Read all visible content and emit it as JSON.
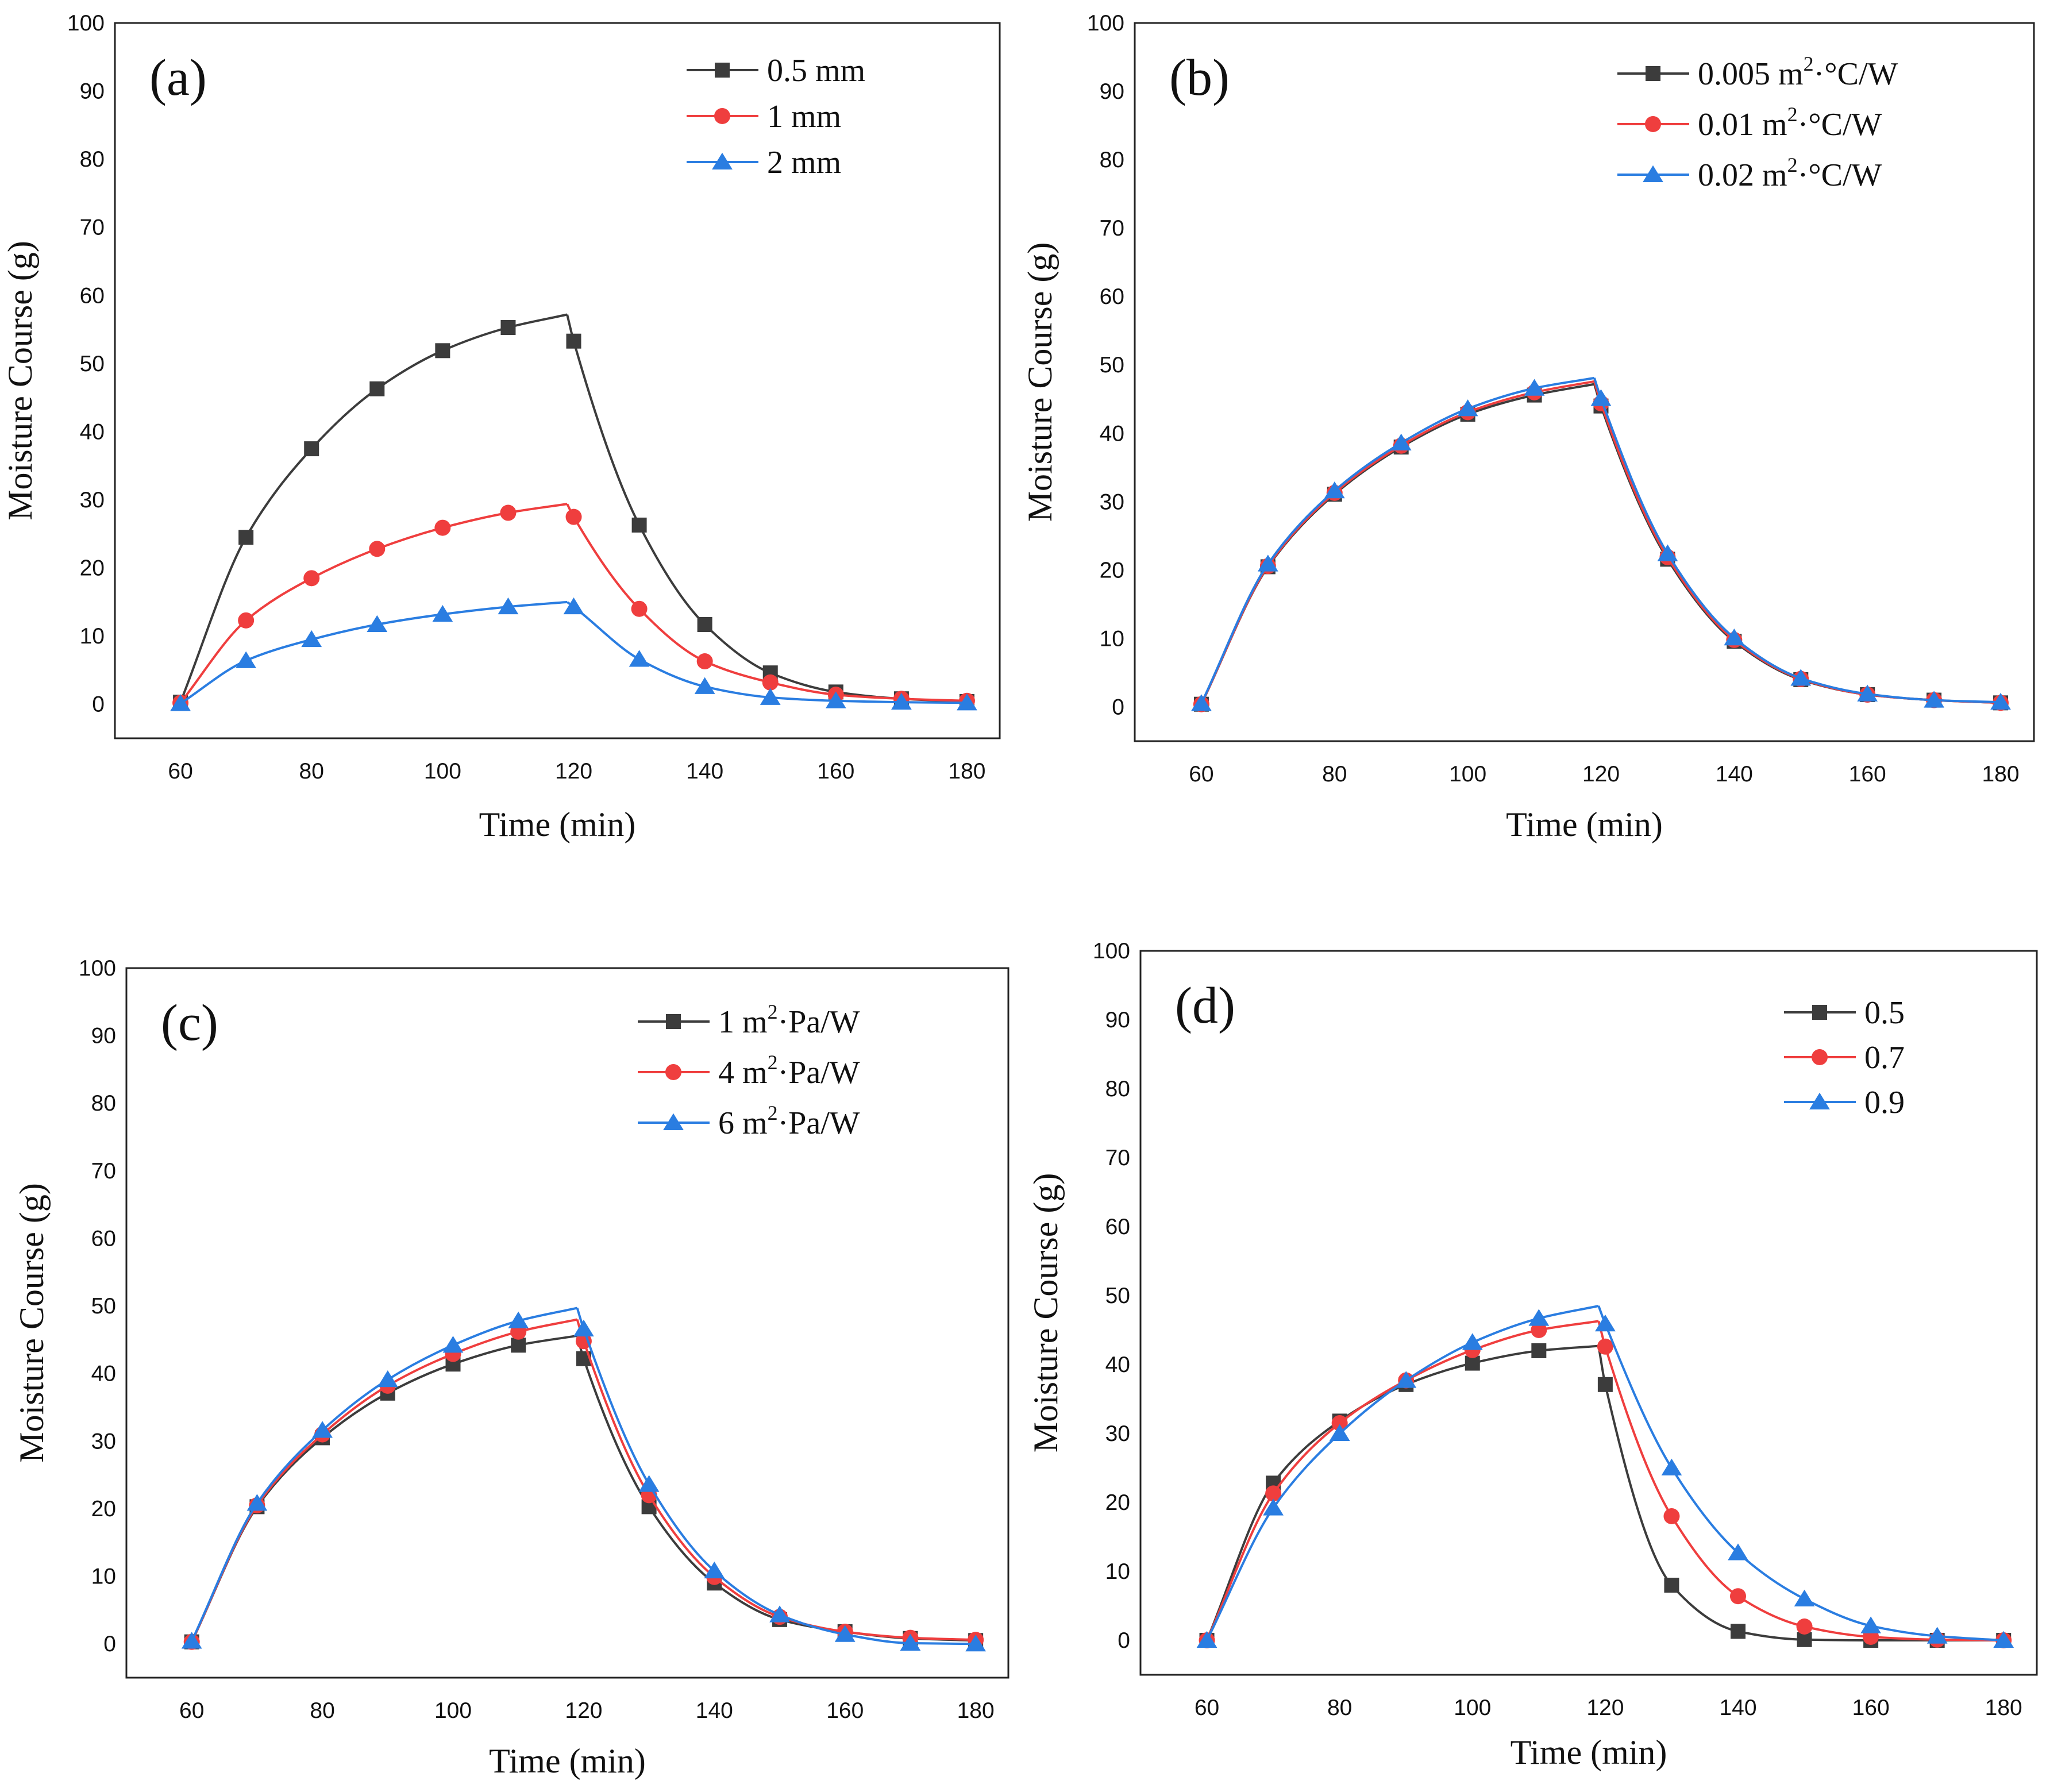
{
  "colors": {
    "black": "#3c3c3c",
    "red": "#ef3e3e",
    "blue": "#2a7de1"
  },
  "chart_data": [
    {
      "type": "line",
      "panel_label": "(a)",
      "xlabel": "Time (min)",
      "ylabel": "Moisture Course (g)",
      "xlim": [
        50,
        185
      ],
      "ylim": [
        -5,
        100
      ],
      "xticks": [
        60,
        80,
        100,
        120,
        140,
        160,
        180
      ],
      "yticks": [
        0,
        10,
        20,
        30,
        40,
        50,
        60,
        70,
        80,
        90,
        100
      ],
      "legend": "top-right",
      "x": [
        60,
        70,
        80,
        90,
        100,
        110,
        120,
        130,
        140,
        150,
        160,
        170,
        180
      ],
      "series": [
        {
          "name": "0.5 mm",
          "marker": "square",
          "color": "black",
          "peak": [
            119,
            57.2
          ],
          "values": [
            0.3,
            24.5,
            37.5,
            46.3,
            51.9,
            55.3,
            53.3,
            26.3,
            11.7,
            4.6,
            1.8,
            0.8,
            0.4
          ]
        },
        {
          "name": "1 mm",
          "marker": "circle",
          "color": "red",
          "peak": [
            119,
            29.4
          ],
          "values": [
            0.2,
            12.3,
            18.5,
            22.8,
            25.9,
            28.1,
            27.5,
            14.0,
            6.3,
            3.2,
            1.4,
            0.8,
            0.5
          ]
        },
        {
          "name": "2 mm",
          "marker": "triangle",
          "color": "blue",
          "peak": [
            119,
            15.0
          ],
          "values": [
            0.1,
            6.4,
            9.5,
            11.7,
            13.2,
            14.3,
            14.3,
            6.6,
            2.6,
            1.0,
            0.5,
            0.3,
            0.2
          ]
        }
      ]
    },
    {
      "type": "line",
      "panel_label": "(b)",
      "xlabel": "Time (min)",
      "ylabel": "Moisture Course (g)",
      "xlim": [
        50,
        185
      ],
      "ylim": [
        -5,
        100
      ],
      "xticks": [
        60,
        80,
        100,
        120,
        140,
        160,
        180
      ],
      "yticks": [
        0,
        10,
        20,
        30,
        40,
        50,
        60,
        70,
        80,
        90,
        100
      ],
      "legend": "top-right",
      "x": [
        60,
        70,
        80,
        90,
        100,
        110,
        120,
        130,
        140,
        150,
        160,
        170,
        180
      ],
      "series": [
        {
          "name": "0.005 m",
          "unit_sup": "2",
          "unit_rest": "·°C/W",
          "marker": "square",
          "color": "black",
          "peak": [
            119,
            47.2
          ],
          "values": [
            0.4,
            20.5,
            31.1,
            38.0,
            42.8,
            45.6,
            44.0,
            21.6,
            9.6,
            4.0,
            1.8,
            1.0,
            0.6
          ]
        },
        {
          "name": "0.01 m",
          "unit_sup": "2",
          "unit_rest": "·°C/W",
          "marker": "circle",
          "color": "red",
          "peak": [
            119,
            47.6
          ],
          "values": [
            0.4,
            20.6,
            31.3,
            38.2,
            43.1,
            46.0,
            44.4,
            21.9,
            9.8,
            4.1,
            1.8,
            1.0,
            0.6
          ]
        },
        {
          "name": "0.02 m",
          "unit_sup": "2",
          "unit_rest": "·°C/W",
          "marker": "triangle",
          "color": "blue",
          "peak": [
            119,
            48.1
          ],
          "values": [
            0.5,
            20.9,
            31.6,
            38.6,
            43.6,
            46.6,
            45.1,
            22.4,
            10.1,
            4.2,
            1.9,
            1.0,
            0.7
          ]
        }
      ]
    },
    {
      "type": "line",
      "panel_label": "(c)",
      "xlabel": "Time (min)",
      "ylabel": "Moisture Course (g)",
      "xlim": [
        50,
        185
      ],
      "ylim": [
        -5,
        100
      ],
      "xticks": [
        60,
        80,
        100,
        120,
        140,
        160,
        180
      ],
      "yticks": [
        0,
        10,
        20,
        30,
        40,
        50,
        60,
        70,
        80,
        90,
        100
      ],
      "legend": "top-right",
      "x": [
        60,
        70,
        80,
        90,
        100,
        110,
        120,
        130,
        140,
        150,
        160,
        170,
        180
      ],
      "series": [
        {
          "name": "1 m",
          "unit_sup": "2",
          "unit_rest": "·Pa/W",
          "marker": "square",
          "color": "black",
          "peak": [
            119,
            45.6
          ],
          "values": [
            0.3,
            20.3,
            30.5,
            37.1,
            41.4,
            44.2,
            42.2,
            20.3,
            9.0,
            3.6,
            1.8,
            0.8,
            0.5
          ]
        },
        {
          "name": "4 m",
          "unit_sup": "2",
          "unit_rest": "·Pa/W",
          "marker": "circle",
          "color": "red",
          "peak": [
            119,
            48.0
          ],
          "values": [
            0.3,
            20.5,
            31.0,
            38.2,
            42.9,
            46.2,
            44.8,
            22.0,
            9.9,
            4.0,
            1.8,
            0.9,
            0.6
          ]
        },
        {
          "name": "6 m",
          "unit_sup": "2",
          "unit_rest": "·Pa/W",
          "marker": "triangle",
          "color": "blue",
          "peak": [
            119,
            49.7
          ],
          "values": [
            0.4,
            20.8,
            31.6,
            39.1,
            44.2,
            47.8,
            46.6,
            23.6,
            10.8,
            4.3,
            1.4,
            0.1,
            0.0
          ]
        }
      ]
    },
    {
      "type": "line",
      "panel_label": "(d)",
      "xlabel": "Time (min)",
      "ylabel": "Moisture Course (g)",
      "xlim": [
        50,
        185
      ],
      "ylim": [
        -5,
        100
      ],
      "xticks": [
        60,
        80,
        100,
        120,
        140,
        160,
        180
      ],
      "yticks": [
        0,
        10,
        20,
        30,
        40,
        50,
        60,
        70,
        80,
        90,
        100
      ],
      "legend": "top-right",
      "x": [
        60,
        70,
        80,
        90,
        100,
        110,
        120,
        130,
        140,
        150,
        160,
        170,
        180
      ],
      "series": [
        {
          "name": "0.5",
          "marker": "square",
          "color": "black",
          "peak": [
            119,
            42.7
          ],
          "values": [
            0.0,
            22.8,
            31.8,
            37.1,
            40.2,
            42.0,
            37.1,
            8.0,
            1.3,
            0.1,
            0.0,
            0.0,
            0.0
          ]
        },
        {
          "name": "0.7",
          "marker": "circle",
          "color": "red",
          "peak": [
            119,
            46.3
          ],
          "values": [
            0.0,
            21.3,
            31.5,
            37.7,
            42.1,
            45.0,
            42.6,
            18.0,
            6.4,
            2.0,
            0.5,
            0.1,
            0.0
          ]
        },
        {
          "name": "0.9",
          "marker": "triangle",
          "color": "blue",
          "peak": [
            119,
            48.5
          ],
          "values": [
            0.0,
            19.2,
            30.0,
            37.7,
            43.2,
            46.7,
            45.9,
            25.0,
            12.7,
            6.0,
            2.1,
            0.6,
            0.0
          ]
        }
      ]
    }
  ]
}
